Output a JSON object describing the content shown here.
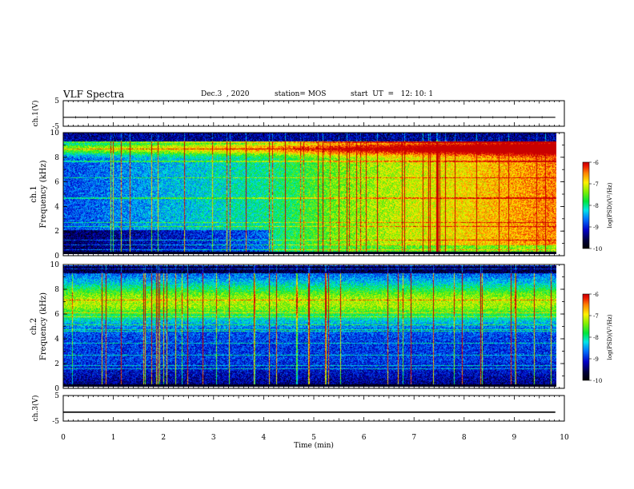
{
  "header": {
    "title": "VLF Spectra",
    "date": "Dec.3  , 2020",
    "station": "station= MOS",
    "start": "start  UT  =   12: 10: 1"
  },
  "chart_data": [
    {
      "type": "line",
      "panel": "ch1-waveform",
      "ylabel": "ch.1(V)",
      "ylim": [
        -5,
        5
      ],
      "yticks": [
        "5",
        "-5"
      ],
      "series": [
        {
          "x": [
            0,
            9.82
          ],
          "values": [
            -1.5,
            -1.5
          ]
        }
      ]
    },
    {
      "type": "heatmap",
      "panel": "ch1-spectrogram",
      "ylabel": "ch.1\nFrequency (kHz)",
      "ylabel_line1": "ch.1",
      "ylabel_line2": "Frequency (kHz)",
      "ylim": [
        0,
        10
      ],
      "yticks": [
        "0",
        "2",
        "4",
        "6",
        "8",
        "10"
      ],
      "xlim": [
        0,
        9.82
      ],
      "colorbar": {
        "label": "log(PSD)(V²/Hz)",
        "min": -10,
        "max": -6,
        "ticks": [
          "-6",
          "-7",
          "-8",
          "-9",
          "-10"
        ]
      }
    },
    {
      "type": "heatmap",
      "panel": "ch2-spectrogram",
      "ylabel_line1": "ch.2",
      "ylabel_line2": "Frequency (kHz)",
      "ylim": [
        0,
        10
      ],
      "yticks": [
        "0",
        "2",
        "4",
        "6",
        "8",
        "10"
      ],
      "xlim": [
        0,
        9.82
      ],
      "colorbar": {
        "label": "log(PSD)(V²/Hz)",
        "min": -10,
        "max": -6,
        "ticks": [
          "-6",
          "-7",
          "-8",
          "-9",
          "-10"
        ]
      }
    },
    {
      "type": "line",
      "panel": "ch3-waveform",
      "ylabel": "ch.3(V)",
      "ylim": [
        -5,
        5
      ],
      "yticks": [
        "5",
        "-5"
      ],
      "series": [
        {
          "x": [
            0,
            9.82
          ],
          "values": [
            -1.5,
            -1.5
          ]
        }
      ]
    }
  ],
  "xaxis": {
    "label": "Time (min)",
    "ticks": [
      "0",
      "1",
      "2",
      "3",
      "4",
      "5",
      "6",
      "7",
      "8",
      "9",
      "10"
    ],
    "xlim": [
      0,
      10
    ]
  }
}
